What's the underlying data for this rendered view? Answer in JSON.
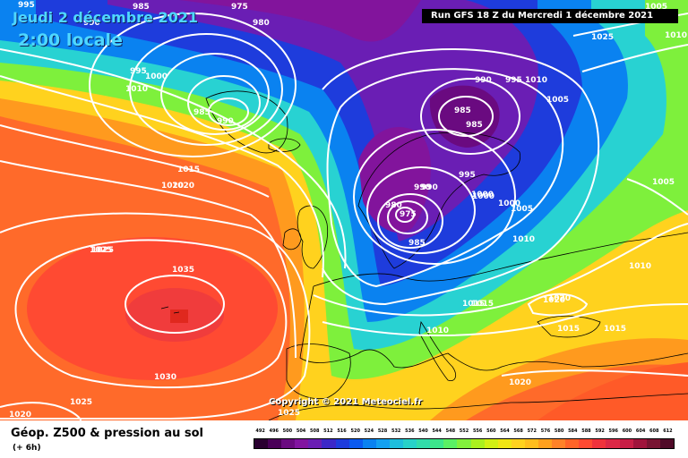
{
  "header": {
    "date": "Jeudi 2 décembre 2021",
    "time": "2:00 locale",
    "run": "Run GFS 18 Z du Mercredi 1 décembre 2021"
  },
  "copyright": "Copyright © 2021 Meteociel.fr",
  "legend": {
    "title": "Géop. Z500 & pression au sol",
    "subtitle": "(+ 6h)",
    "scale": [
      "492",
      "496",
      "500",
      "504",
      "508",
      "512",
      "516",
      "520",
      "524",
      "528",
      "532",
      "536",
      "540",
      "544",
      "548",
      "552",
      "556",
      "560",
      "564",
      "568",
      "572",
      "576",
      "580",
      "584",
      "588",
      "592",
      "596",
      "600",
      "604",
      "608",
      "612"
    ],
    "colors": [
      "#2a0030",
      "#4a0058",
      "#6a0a80",
      "#8214a0",
      "#6a1eb4",
      "#3c28c8",
      "#1e3cdc",
      "#0a5af0",
      "#0a82f0",
      "#14a0f0",
      "#1ebedc",
      "#28d2c8",
      "#32dcaa",
      "#3ce68c",
      "#5af064",
      "#82f03c",
      "#aaf01e",
      "#d2f014",
      "#f0e614",
      "#ffd21e",
      "#ffbe1e",
      "#ffa01e",
      "#ff8228",
      "#ff6428",
      "#ff4a32",
      "#f0323c",
      "#dc2846",
      "#c81e46",
      "#a0143c",
      "#781432",
      "#500a28"
    ]
  },
  "isobars": [
    "995",
    "990",
    "985",
    "975",
    "980",
    "995",
    "1000",
    "985",
    "990",
    "1010",
    "1010",
    "1005",
    "1000",
    "990",
    "985",
    "1025",
    "1020",
    "1020",
    "1015",
    "1020",
    "1015",
    "1025",
    "1035",
    "1030",
    "1025",
    "1020",
    "1025",
    "995",
    "1000",
    "1005",
    "990",
    "980",
    "975",
    "985",
    "985",
    "990",
    "995",
    "1000",
    "1005",
    "1010",
    "1005",
    "1010",
    "1010",
    "1015",
    "1020",
    "1015",
    "1015",
    "1010",
    "1020",
    "1025"
  ]
}
